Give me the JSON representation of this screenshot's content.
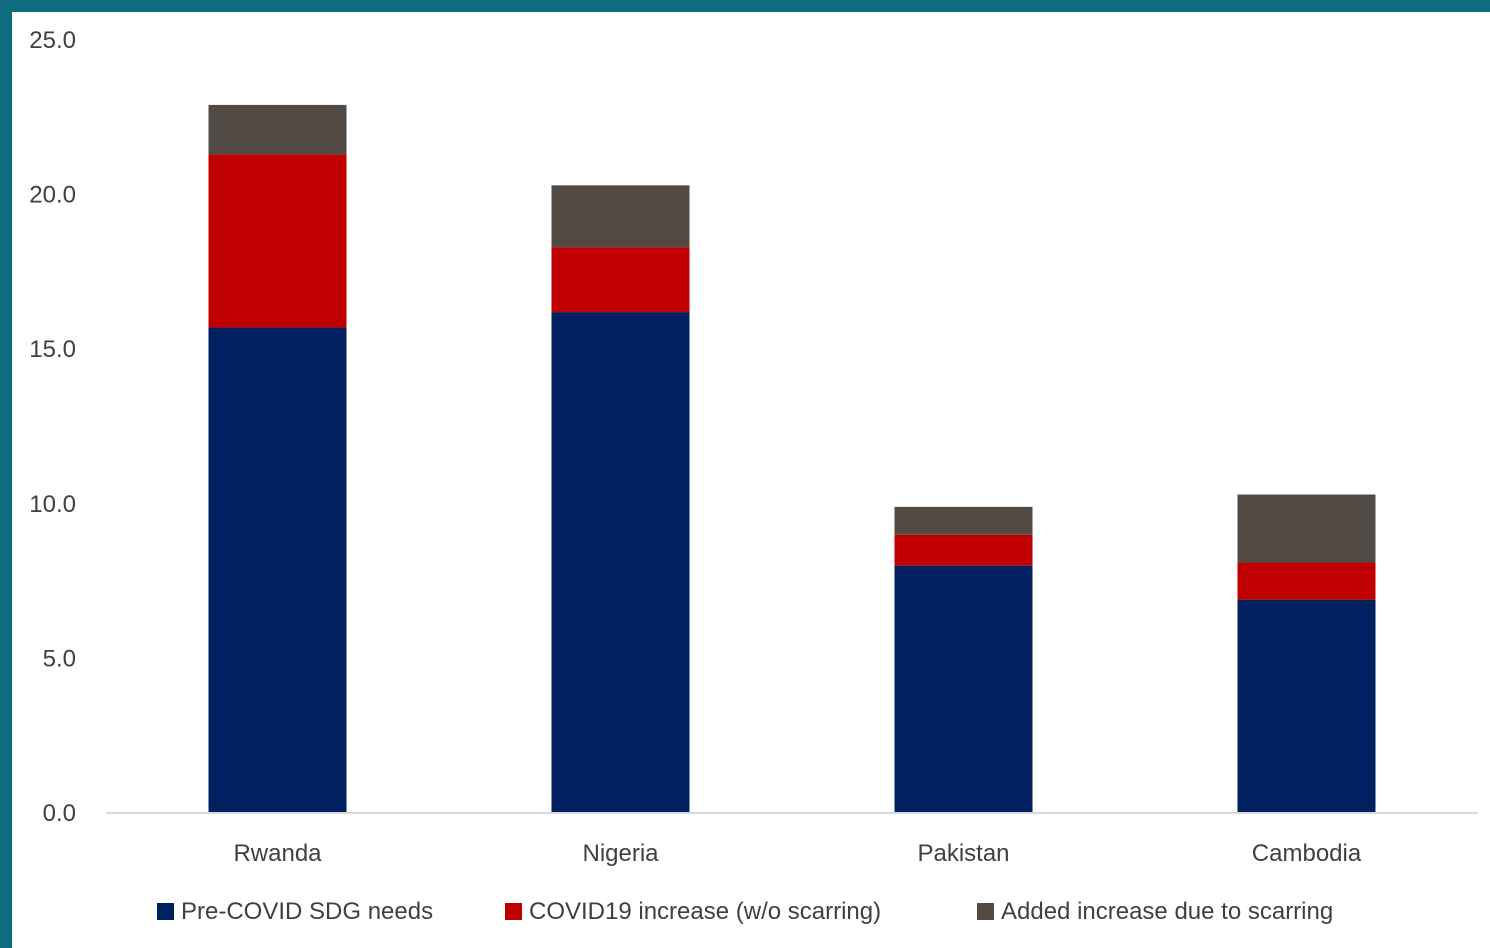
{
  "colors": {
    "frame": "#0f6b80",
    "background": "#ffffff",
    "axis": "#d9d9d9",
    "text": "#404040"
  },
  "chart_data": {
    "type": "bar",
    "stacked": true,
    "title": "",
    "xlabel": "",
    "ylabel": "",
    "ylim": [
      0,
      25
    ],
    "y_ticks": [
      "0.0",
      "5.0",
      "10.0",
      "15.0",
      "20.0",
      "25.0"
    ],
    "grid": false,
    "legend_position": "bottom",
    "categories": [
      "Rwanda",
      "Nigeria",
      "Pakistan",
      "Cambodia"
    ],
    "series": [
      {
        "name": "Pre-COVID SDG needs",
        "color": "#002060",
        "values": [
          15.7,
          16.2,
          8.0,
          6.9
        ]
      },
      {
        "name": "COVID19 increase (w/o scarring)",
        "color": "#c00000",
        "values": [
          5.6,
          2.1,
          1.0,
          1.2
        ]
      },
      {
        "name": "Added increase due to scarring",
        "color": "#524a45",
        "values": [
          1.6,
          2.0,
          0.9,
          2.2
        ]
      }
    ]
  }
}
